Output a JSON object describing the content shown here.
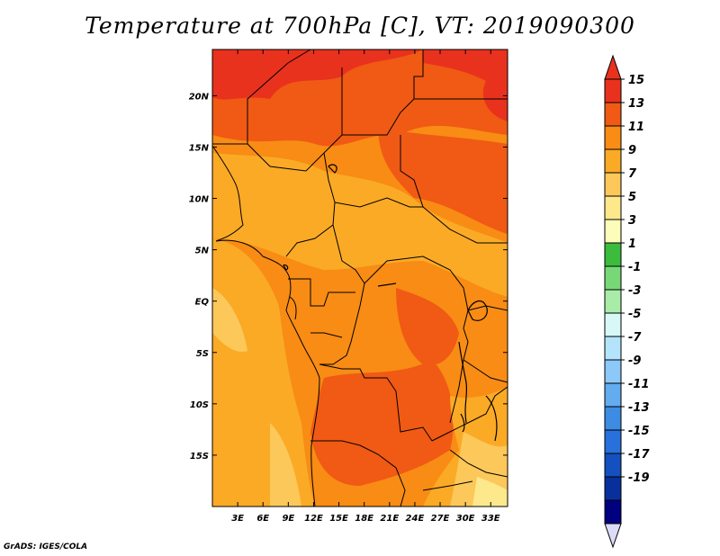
{
  "title": "Temperature at 700hPa [C], VT: 2019090300",
  "credit": "GrADS: IGES/COLA",
  "map": {
    "lon_range": [
      0,
      35
    ],
    "lat_range": [
      -20,
      24.5
    ],
    "lon_ticks": [
      "3E",
      "6E",
      "9E",
      "12E",
      "15E",
      "18E",
      "21E",
      "24E",
      "27E",
      "30E",
      "33E"
    ],
    "lon_tick_values": [
      3,
      6,
      9,
      12,
      15,
      18,
      21,
      24,
      27,
      30,
      33
    ],
    "lat_ticks": [
      "20N",
      "15N",
      "10N",
      "5N",
      "EQ",
      "5S",
      "10S",
      "15S"
    ],
    "lat_tick_values": [
      20,
      15,
      10,
      5,
      0,
      -5,
      -10,
      -15
    ]
  },
  "colorbar": {
    "labels": [
      "15",
      "13",
      "11",
      "9",
      "7",
      "5",
      "3",
      "1",
      "-1",
      "-3",
      "-5",
      "-7",
      "-9",
      "-11",
      "-13",
      "-15",
      "-17",
      "-19"
    ],
    "colors": [
      "#e8321e",
      "#f05a14",
      "#f88c14",
      "#fbaa26",
      "#fcc85a",
      "#fde88c",
      "#fefcba",
      "#3cbc3c",
      "#78d878",
      "#a8eca8",
      "#d8f8f8",
      "#b4e4fc",
      "#8cc8f8",
      "#64acf0",
      "#3c8ce4",
      "#2870dc",
      "#1450c0",
      "#08309c",
      "#000080"
    ],
    "top_color": "#e8321e",
    "bottom_color": "#dcdcf8"
  }
}
